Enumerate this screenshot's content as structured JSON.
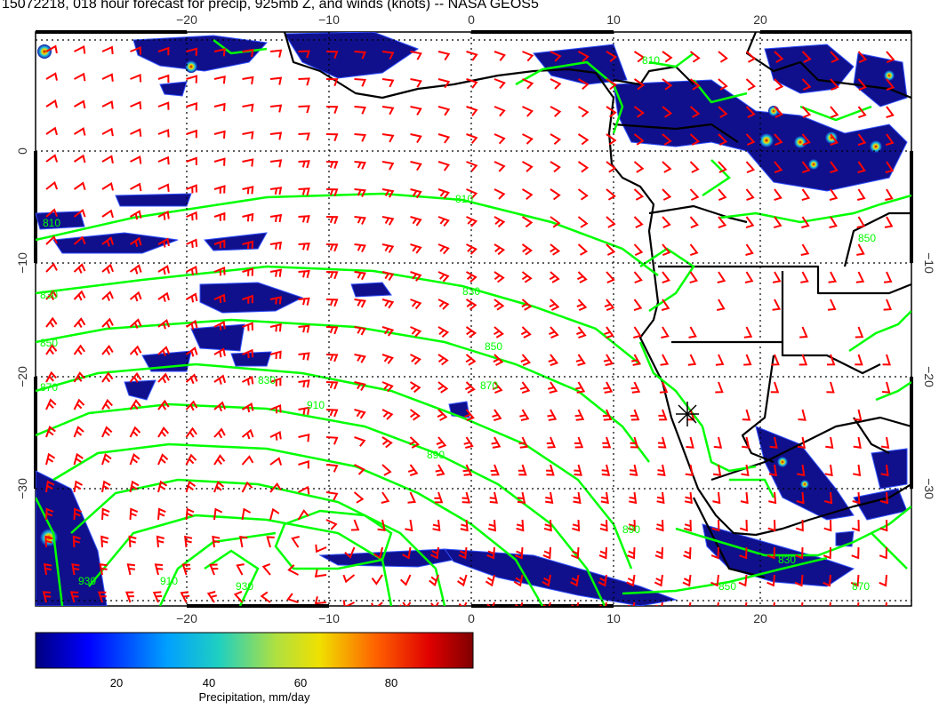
{
  "title": "15072218, 018 hour forecast for precip, 925mb Z, and winds (knots) -- NASA GEOS5",
  "x_ticks": [
    "−20",
    "−10",
    "0",
    "10",
    "20"
  ],
  "y_ticks": [
    "0",
    "−10",
    "−20",
    "−30"
  ],
  "contour_labels": [
    "810",
    "810",
    "830",
    "830",
    "830",
    "850",
    "850",
    "870",
    "870",
    "890",
    "890",
    "910",
    "930",
    "850",
    "870",
    "830",
    "810",
    "850",
    "910",
    "930"
  ],
  "colorbar": {
    "ticks": [
      "20",
      "40",
      "60",
      "80"
    ],
    "label": "Precipitation, mm/day"
  },
  "colors": {
    "precip_low": "#10108c",
    "contour": "#00ff00",
    "wind_barb": "#ff0000",
    "coastline": "#000000",
    "grid": "#000000"
  },
  "map": {
    "lon_range": [
      -30,
      30
    ],
    "lat_range": [
      -40,
      10
    ],
    "layers": [
      "precipitation",
      "925mb-geopotential-height-contours",
      "wind-barbs",
      "coastlines",
      "country-borders",
      "grid"
    ]
  }
}
